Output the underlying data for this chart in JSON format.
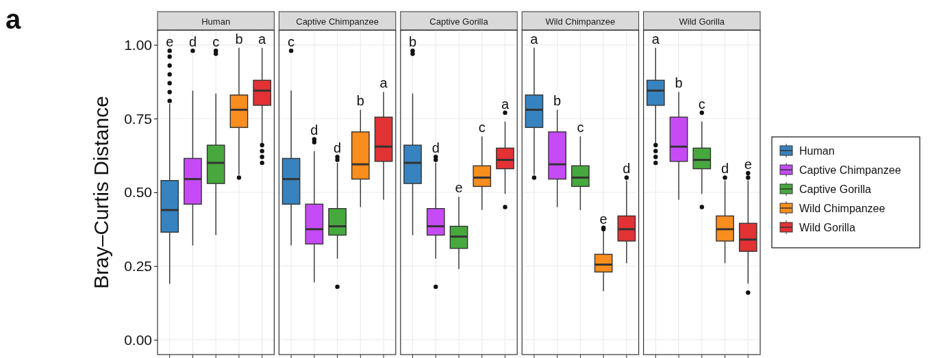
{
  "chart_data": {
    "type": "box",
    "ylabel": "Bray–Curtis Distance",
    "annotations": [
      "a"
    ],
    "categories": [
      "Human",
      "Captive Chimpanzee",
      "Captive Gorilla",
      "Wild Chimpanzee",
      "Wild Gorilla"
    ],
    "ylim": [
      -0.05,
      1.05
    ],
    "yticks": [
      {
        "value": 0,
        "label": "0.00"
      },
      {
        "value": 0.25,
        "label": "0.25"
      },
      {
        "value": 0.5,
        "label": "0.50"
      },
      {
        "value": 0.75,
        "label": "0.75"
      },
      {
        "value": 1,
        "label": "1.00"
      }
    ],
    "grid": true,
    "legend": "right",
    "series": [
      {
        "name": "Human",
        "color": "#3783bf",
        "value_labels": [
          "e",
          "c",
          "b",
          "a",
          "a"
        ],
        "boxes": [
          {
            "low": 0.19,
            "q1": 0.365,
            "median": 0.44,
            "q3": 0.54,
            "high": 0.8,
            "outliers": [
              0.81,
              0.84,
              0.87,
              0.9,
              0.93,
              0.96,
              0.98
            ]
          },
          {
            "low": 0.32,
            "q1": 0.46,
            "median": 0.545,
            "q3": 0.615,
            "high": 0.845,
            "outliers": [
              0.98
            ]
          },
          {
            "low": 0.355,
            "q1": 0.53,
            "median": 0.6,
            "q3": 0.66,
            "high": 0.835,
            "outliers": [
              0.97,
              0.98
            ]
          },
          {
            "low": 0.56,
            "q1": 0.72,
            "median": 0.78,
            "q3": 0.83,
            "high": 0.99,
            "outliers": [
              0.55
            ]
          },
          {
            "low": 0.66,
            "q1": 0.795,
            "median": 0.845,
            "q3": 0.88,
            "high": 0.99,
            "outliers": [
              0.6,
              0.62,
              0.64,
              0.66
            ]
          }
        ]
      },
      {
        "name": "Captive Chimpanzee",
        "color": "#c64bf7",
        "value_labels": [
          "d",
          "d",
          "d",
          "b",
          "b"
        ],
        "boxes": [
          {
            "low": 0.32,
            "q1": 0.46,
            "median": 0.545,
            "q3": 0.615,
            "high": 0.845,
            "outliers": [
              0.98
            ]
          },
          {
            "low": 0.195,
            "q1": 0.325,
            "median": 0.375,
            "q3": 0.46,
            "high": 0.64,
            "outliers": [
              0.67,
              0.68
            ]
          },
          {
            "low": 0.275,
            "q1": 0.355,
            "median": 0.385,
            "q3": 0.445,
            "high": 0.6,
            "outliers": [
              0.18,
              0.61,
              0.62
            ]
          },
          {
            "low": 0.45,
            "q1": 0.545,
            "median": 0.595,
            "q3": 0.705,
            "high": 0.78
          },
          {
            "low": 0.475,
            "q1": 0.605,
            "median": 0.655,
            "q3": 0.755,
            "high": 0.84
          }
        ]
      },
      {
        "name": "Captive Gorilla",
        "color": "#47a83e",
        "value_labels": [
          "c",
          "d",
          "e",
          "c",
          "c"
        ],
        "boxes": [
          {
            "low": 0.355,
            "q1": 0.53,
            "median": 0.6,
            "q3": 0.66,
            "high": 0.835,
            "outliers": [
              0.97,
              0.98
            ]
          },
          {
            "low": 0.275,
            "q1": 0.355,
            "median": 0.385,
            "q3": 0.445,
            "high": 0.6,
            "outliers": [
              0.18,
              0.61,
              0.62
            ]
          },
          {
            "low": 0.24,
            "q1": 0.31,
            "median": 0.35,
            "q3": 0.385,
            "high": 0.485
          },
          {
            "low": 0.44,
            "q1": 0.52,
            "median": 0.55,
            "q3": 0.59,
            "high": 0.69
          },
          {
            "low": 0.495,
            "q1": 0.58,
            "median": 0.61,
            "q3": 0.65,
            "high": 0.74,
            "outliers": [
              0.45,
              0.77
            ]
          }
        ]
      },
      {
        "name": "Wild Chimpanzee",
        "color": "#f98d1d",
        "value_labels": [
          "b",
          "b",
          "c",
          "e",
          "d"
        ],
        "boxes": [
          {
            "low": 0.56,
            "q1": 0.72,
            "median": 0.78,
            "q3": 0.83,
            "high": 0.99,
            "outliers": [
              0.55
            ]
          },
          {
            "low": 0.45,
            "q1": 0.545,
            "median": 0.595,
            "q3": 0.705,
            "high": 0.78
          },
          {
            "low": 0.44,
            "q1": 0.52,
            "median": 0.55,
            "q3": 0.59,
            "high": 0.69
          },
          {
            "low": 0.165,
            "q1": 0.23,
            "median": 0.255,
            "q3": 0.29,
            "high": 0.37,
            "outliers": [
              0.375,
              0.38
            ]
          },
          {
            "low": 0.26,
            "q1": 0.335,
            "median": 0.375,
            "q3": 0.42,
            "high": 0.54,
            "outliers": [
              0.55
            ]
          }
        ]
      },
      {
        "name": "Wild Gorilla",
        "color": "#e23234",
        "value_labels": [
          "a",
          "a",
          "a",
          "d",
          "e"
        ],
        "boxes": [
          {
            "low": 0.66,
            "q1": 0.795,
            "median": 0.845,
            "q3": 0.88,
            "high": 0.99,
            "outliers": [
              0.6,
              0.62,
              0.64,
              0.66
            ]
          },
          {
            "low": 0.475,
            "q1": 0.605,
            "median": 0.655,
            "q3": 0.755,
            "high": 0.84
          },
          {
            "low": 0.495,
            "q1": 0.58,
            "median": 0.61,
            "q3": 0.65,
            "high": 0.74,
            "outliers": [
              0.45,
              0.77
            ]
          },
          {
            "low": 0.26,
            "q1": 0.335,
            "median": 0.375,
            "q3": 0.42,
            "high": 0.54,
            "outliers": [
              0.55
            ]
          },
          {
            "low": 0.19,
            "q1": 0.3,
            "median": 0.34,
            "q3": 0.395,
            "high": 0.54,
            "outliers": [
              0.16,
              0.55,
              0.565
            ]
          }
        ]
      }
    ]
  }
}
